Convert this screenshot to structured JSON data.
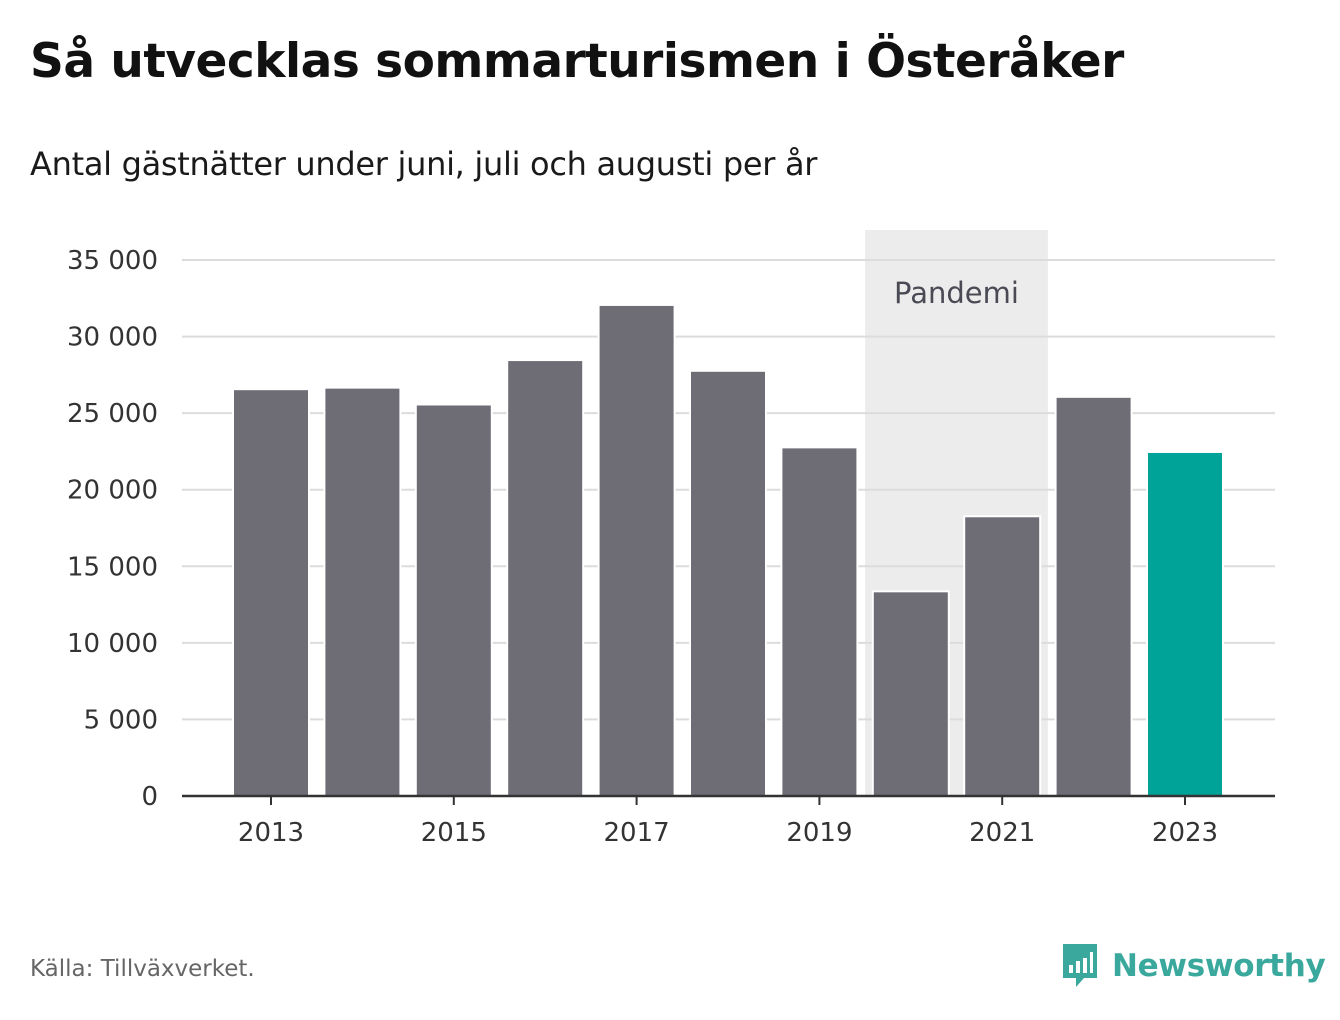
{
  "header": {
    "title": "Så utvecklas sommarturismen i Österåker",
    "subtitle": "Antal gästnätter under juni, juli och augusti per år"
  },
  "chart_data": {
    "type": "bar",
    "categories": [
      "2013",
      "2014",
      "2015",
      "2016",
      "2017",
      "2018",
      "2019",
      "2020",
      "2021",
      "2022",
      "2023"
    ],
    "values": [
      26500,
      26600,
      25500,
      28400,
      32000,
      27700,
      22700,
      13300,
      18200,
      26000,
      22400
    ],
    "x_tick_labels": [
      "2013",
      "2015",
      "2017",
      "2019",
      "2021",
      "2023"
    ],
    "y_ticks": [
      0,
      5000,
      10000,
      15000,
      20000,
      25000,
      30000,
      35000
    ],
    "y_tick_labels": [
      "0",
      "5 000",
      "10 000",
      "15 000",
      "20 000",
      "25 000",
      "30 000",
      "35 000"
    ],
    "ylim": [
      0,
      37000
    ],
    "grid": true,
    "xlabel": "",
    "ylabel": "",
    "highlight_category": "2023",
    "colors": {
      "bar": "#6e6d75",
      "highlight": "#00a398",
      "band": "#ececec",
      "grid": "#dcdcdc",
      "axis": "#333333"
    },
    "annotation": {
      "label": "Pandemi",
      "from": "2020",
      "to": "2021"
    }
  },
  "footer": {
    "source": "Källa: Tillväxverket.",
    "brand": "Newsworthy",
    "logo_icon": "newsworthy-logo-icon"
  }
}
